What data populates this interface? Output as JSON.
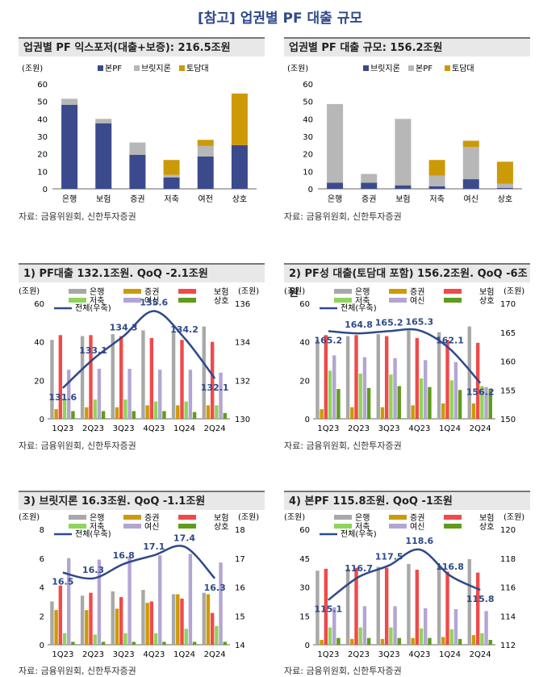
{
  "page_title": "[참고] 업권별 PF 대출 규모",
  "source": "자료: 금융위원회, 신한투자증권",
  "colors": {
    "bonpf": "#3b4a8c",
    "bridge": "#b7b7b7",
    "todam": "#cc9a06",
    "bank": "#a8a8a8",
    "sec": "#cc9a06",
    "ins": "#f04a4a",
    "savings": "#8fd45c",
    "credit": "#b3a5d3",
    "mutual": "#5f9c1c",
    "line": "#2e4a8a"
  },
  "chart_data": [
    {
      "type": "bar",
      "stacked": true,
      "title": "업권별 PF 익스포저(대출+보증): 216.5조원",
      "ylabel": "(조원)",
      "ylim": [
        0,
        60
      ],
      "yticks": [
        0,
        10,
        20,
        30,
        40,
        50,
        60
      ],
      "categories": [
        "은행",
        "보험",
        "증권",
        "저축",
        "여전",
        "상호"
      ],
      "series": [
        {
          "name": "본PF",
          "values": [
            48,
            37.5,
            19.5,
            6.5,
            18.5,
            25
          ]
        },
        {
          "name": "브릿지론",
          "values": [
            3.5,
            2.5,
            7,
            1.5,
            6,
            0
          ]
        },
        {
          "name": "토담대",
          "values": [
            0,
            0,
            0,
            8.5,
            3.5,
            29.5
          ]
        }
      ]
    },
    {
      "type": "bar",
      "stacked": true,
      "title": "업권별 PF 대출 규모: 156.2조원",
      "ylabel": "(조원)",
      "ylim": [
        0,
        60
      ],
      "yticks": [
        0,
        10,
        20,
        30,
        40,
        50,
        60
      ],
      "categories": [
        "은행",
        "증권",
        "보험",
        "저축",
        "여신",
        "상호"
      ],
      "series": [
        {
          "name": "브릿지론",
          "values": [
            3.5,
            3.5,
            2,
            1.5,
            5.5,
            0.5
          ]
        },
        {
          "name": "본PF",
          "values": [
            45,
            5,
            38,
            6,
            18.5,
            2.5
          ]
        },
        {
          "name": "토담대",
          "values": [
            0,
            0,
            0,
            9,
            3.5,
            12.5
          ]
        }
      ]
    },
    {
      "type": "bar+line",
      "title": "1) PF대출 132.1조원. QoQ -2.1조원",
      "ylabel": "(조원)",
      "y2label": "(조원)",
      "ylim": [
        0,
        60
      ],
      "yticks": [
        0,
        20,
        40,
        60
      ],
      "y2lim": [
        130,
        136
      ],
      "y2ticks": [
        130,
        132,
        134,
        136
      ],
      "categories": [
        "1Q23",
        "2Q23",
        "3Q23",
        "4Q23",
        "1Q24",
        "2Q24"
      ],
      "series": [
        {
          "name": "은행",
          "values": [
            41,
            43,
            44,
            46,
            45,
            48
          ]
        },
        {
          "name": "증권",
          "values": [
            5,
            6,
            6,
            7,
            7,
            7
          ]
        },
        {
          "name": "보험",
          "values": [
            43.5,
            43.5,
            43,
            42,
            41,
            40
          ]
        },
        {
          "name": "저축",
          "values": [
            10,
            10,
            10,
            9,
            9,
            7
          ]
        },
        {
          "name": "여신",
          "values": [
            25.5,
            26,
            26,
            25.5,
            25.5,
            24
          ]
        },
        {
          "name": "상호",
          "values": [
            4,
            4,
            4,
            4,
            3.5,
            3
          ]
        }
      ],
      "line": {
        "name": "전체(우축)",
        "values": [
          131.6,
          133.1,
          134.3,
          135.6,
          134.2,
          132.1
        ],
        "labels": [
          "131.6",
          "133.1",
          "134.3",
          "135.6",
          "134.2",
          "132.1"
        ]
      }
    },
    {
      "type": "bar+line",
      "title": "2) PF성 대출(토담대 포함) 156.2조원. QoQ -6조원",
      "ylabel": "(조원)",
      "y2label": "(조원)",
      "ylim": [
        0,
        60
      ],
      "yticks": [
        0,
        20,
        40,
        60
      ],
      "y2lim": [
        150,
        170
      ],
      "y2ticks": [
        150,
        155,
        160,
        165,
        170
      ],
      "categories": [
        "1Q23",
        "2Q23",
        "3Q23",
        "4Q23",
        "1Q24",
        "2Q24"
      ],
      "series": [
        {
          "name": "은행",
          "values": [
            41,
            43,
            44,
            46,
            45,
            48
          ]
        },
        {
          "name": "증권",
          "values": [
            5,
            6,
            6,
            7,
            8,
            8
          ]
        },
        {
          "name": "보험",
          "values": [
            43.5,
            43.5,
            43,
            42,
            41,
            39.5
          ]
        },
        {
          "name": "저축",
          "values": [
            25,
            23.5,
            23,
            21,
            20,
            17
          ]
        },
        {
          "name": "여신",
          "values": [
            33,
            32,
            31.5,
            30.5,
            29.5,
            16.5
          ]
        },
        {
          "name": "상호",
          "values": [
            15.5,
            16,
            17,
            16.5,
            15,
            15
          ]
        }
      ],
      "line": {
        "name": "전체(우축)",
        "values": [
          165.2,
          164.8,
          165.2,
          165.3,
          162.1,
          156.2
        ],
        "labels": [
          "165.2",
          "164.8",
          "165.2",
          "165.3",
          "162.1",
          "156.2"
        ]
      }
    },
    {
      "type": "bar+line",
      "title": "3) 브릿지론 16.3조원. QoQ -1.1조원",
      "ylabel": "(조원)",
      "y2label": "(조원)",
      "ylim": [
        0,
        8
      ],
      "yticks": [
        0,
        2,
        4,
        6,
        8
      ],
      "y2lim": [
        14,
        18
      ],
      "y2ticks": [
        14,
        15,
        16,
        17,
        18
      ],
      "categories": [
        "1Q23",
        "2Q23",
        "3Q23",
        "4Q23",
        "1Q24",
        "2Q24"
      ],
      "series": [
        {
          "name": "은행",
          "values": [
            3,
            3.4,
            3.7,
            3.8,
            3.5,
            3.6
          ]
        },
        {
          "name": "증권",
          "values": [
            2.4,
            2.4,
            2.5,
            2.9,
            3.5,
            3.5
          ]
        },
        {
          "name": "보험",
          "values": [
            4.1,
            3.6,
            3.3,
            3,
            3.2,
            2.2
          ]
        },
        {
          "name": "저축",
          "values": [
            0.8,
            0.7,
            0.8,
            0.8,
            1.1,
            1.3
          ]
        },
        {
          "name": "여신",
          "values": [
            6,
            5.9,
            6.1,
            6.2,
            6.3,
            5.7
          ]
        },
        {
          "name": "상호",
          "values": [
            0.2,
            0.2,
            0.2,
            0.2,
            0.2,
            0.2
          ]
        }
      ],
      "line": {
        "name": "전체(우축)",
        "values": [
          16.5,
          16.3,
          16.8,
          17.1,
          17.4,
          16.3
        ],
        "labels": [
          "16.5",
          "16.3",
          "16.8",
          "17.1",
          "17.4",
          "16.3"
        ]
      }
    },
    {
      "type": "bar+line",
      "title": "4) 본PF 115.8조원. QoQ -1조원",
      "ylabel": "(조원)",
      "y2label": "(조원)",
      "ylim": [
        0,
        60
      ],
      "yticks": [
        0,
        15,
        30,
        45,
        60
      ],
      "y2lim": [
        112,
        120
      ],
      "y2ticks": [
        112,
        114,
        116,
        118,
        120
      ],
      "categories": [
        "1Q23",
        "2Q23",
        "3Q23",
        "4Q23",
        "1Q24",
        "2Q24"
      ],
      "series": [
        {
          "name": "은행",
          "values": [
            38.5,
            39.5,
            40.5,
            42,
            41.5,
            44.5
          ]
        },
        {
          "name": "증권",
          "values": [
            2.5,
            3,
            3,
            3.5,
            4,
            5
          ]
        },
        {
          "name": "보험",
          "values": [
            39.5,
            40,
            40,
            39,
            38,
            37.5
          ]
        },
        {
          "name": "저축",
          "values": [
            9,
            9,
            9,
            8.5,
            8,
            6
          ]
        },
        {
          "name": "여신",
          "values": [
            19.5,
            20,
            20,
            19,
            18.5,
            17.5
          ]
        },
        {
          "name": "상호",
          "values": [
            3.5,
            3.5,
            3.5,
            3.5,
            3,
            2.5
          ]
        }
      ],
      "line": {
        "name": "전체(우축)",
        "values": [
          115.1,
          116.7,
          117.5,
          118.6,
          116.8,
          115.8
        ],
        "labels": [
          "115.1",
          "116.7",
          "117.5",
          "118.6",
          "116.8",
          "115.8"
        ]
      }
    }
  ]
}
